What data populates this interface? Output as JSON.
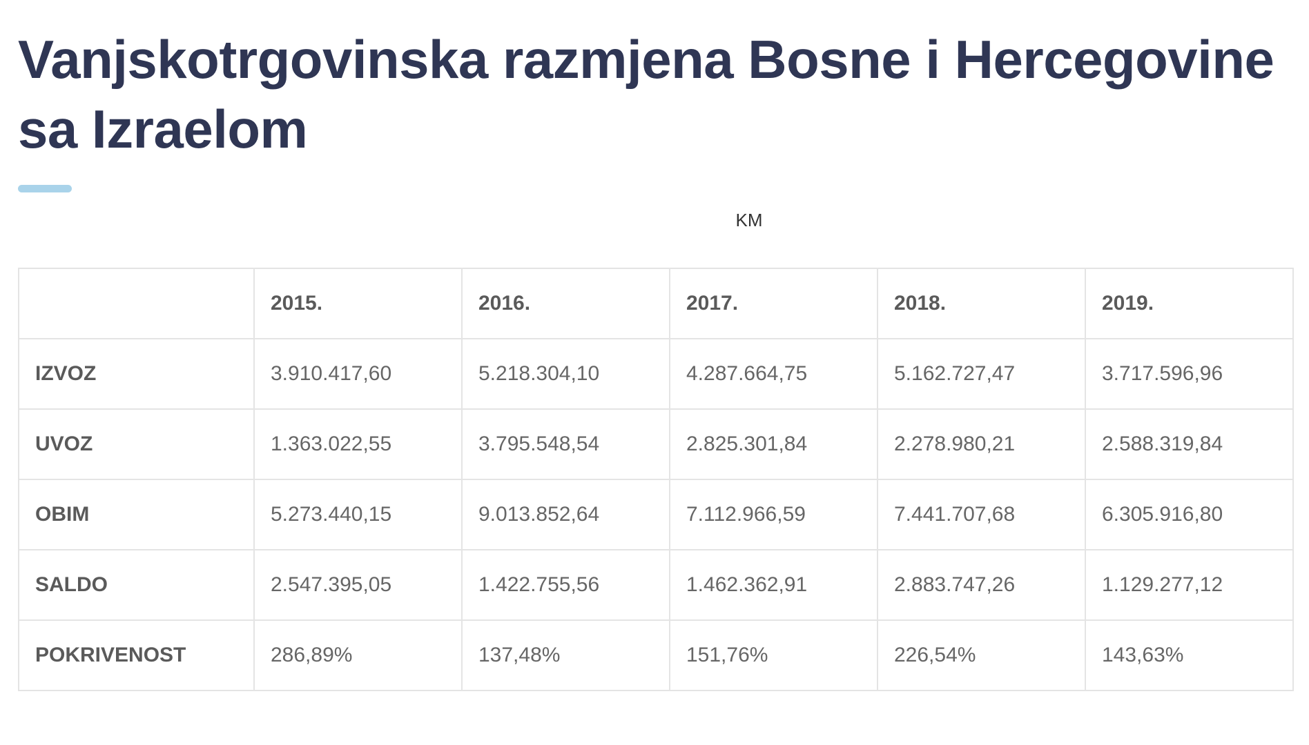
{
  "title": "Vanjskotrgovinska razmjena Bosne i Hercegovine sa Izraelom",
  "unit": "KM",
  "colors": {
    "title": "#2f3654",
    "accent_underline": "#a9d3ea",
    "border": "#e4e4e4",
    "text": "#5a5a5a"
  },
  "table": {
    "columns": [
      "",
      "2015.",
      "2016.",
      "2017.",
      "2018.",
      "2019."
    ],
    "rows": [
      {
        "label": "IZVOZ",
        "values": [
          "3.910.417,60",
          "5.218.304,10",
          "4.287.664,75",
          "5.162.727,47",
          "3.717.596,96"
        ]
      },
      {
        "label": "UVOZ",
        "values": [
          "1.363.022,55",
          "3.795.548,54",
          "2.825.301,84",
          "2.278.980,21",
          "2.588.319,84"
        ]
      },
      {
        "label": "OBIM",
        "values": [
          "5.273.440,15",
          "9.013.852,64",
          "7.112.966,59",
          "7.441.707,68",
          "6.305.916,80"
        ]
      },
      {
        "label": "SALDO",
        "values": [
          "2.547.395,05",
          "1.422.755,56",
          "1.462.362,91",
          "2.883.747,26",
          "1.129.277,12"
        ]
      },
      {
        "label": "POKRIVENOST",
        "values": [
          "286,89%",
          "137,48%",
          "151,76%",
          "226,54%",
          "143,63%"
        ]
      }
    ]
  }
}
